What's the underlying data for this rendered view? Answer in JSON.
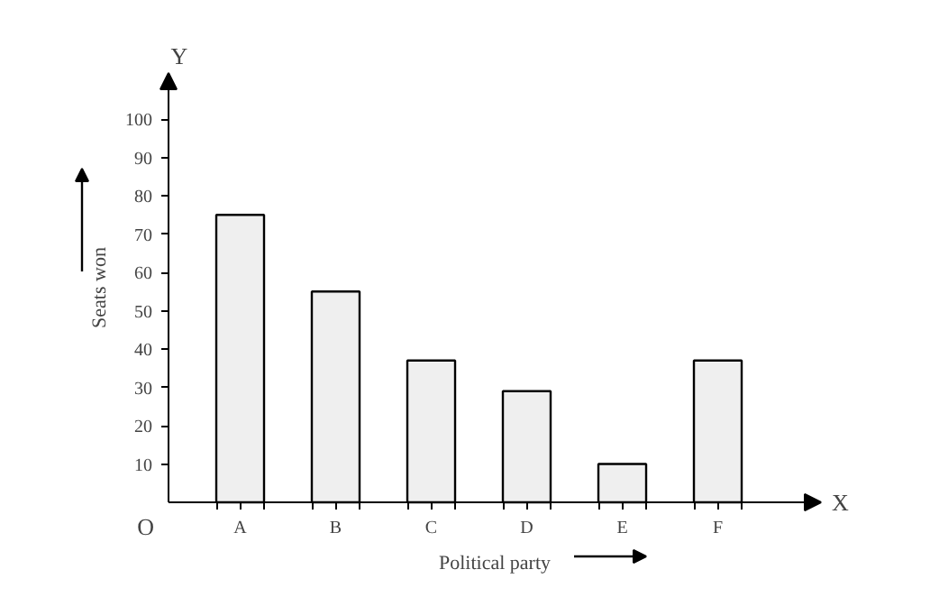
{
  "chart_data": {
    "type": "bar",
    "xlabel": "Political party",
    "ylabel": "Seats won",
    "categories": [
      "A",
      "B",
      "C",
      "D",
      "E",
      "F"
    ],
    "values": [
      75,
      55,
      37,
      29,
      10,
      37
    ],
    "color": "#efefef",
    "ylim": [
      0,
      112
    ],
    "yticks": [
      10,
      20,
      30,
      40,
      50,
      60,
      70,
      80,
      90,
      100
    ],
    "grid": false,
    "annotations": [
      "Y",
      "X",
      "O"
    ]
  }
}
